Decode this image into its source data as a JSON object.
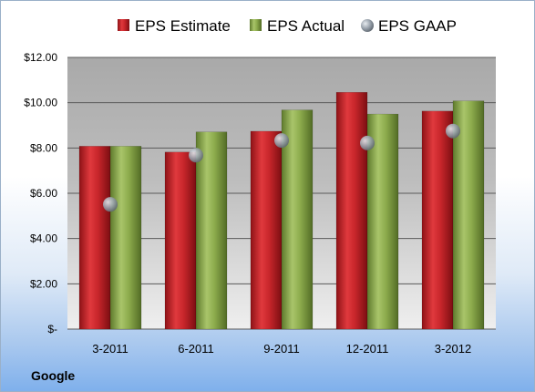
{
  "chart_data": {
    "type": "bar",
    "categories": [
      "3-2011",
      "6-2011",
      "9-2011",
      "12-2011",
      "3-2012"
    ],
    "series": [
      {
        "name": "EPS Estimate",
        "kind": "bar",
        "color": "#c0252a",
        "values": [
          8.08,
          7.82,
          8.74,
          10.46,
          9.63
        ]
      },
      {
        "name": "EPS Actual",
        "kind": "bar",
        "color": "#8cab4c",
        "values": [
          8.08,
          8.71,
          9.68,
          9.5,
          10.08
        ]
      },
      {
        "name": "EPS GAAP",
        "kind": "marker",
        "color": "#9aa3ad",
        "values": [
          5.51,
          7.68,
          8.33,
          8.22,
          8.75
        ]
      }
    ],
    "y_ticks": [
      {
        "value": 0,
        "label": "$-"
      },
      {
        "value": 2,
        "label": "$2.00"
      },
      {
        "value": 4,
        "label": "$4.00"
      },
      {
        "value": 6,
        "label": "$6.00"
      },
      {
        "value": 8,
        "label": "$8.00"
      },
      {
        "value": 10,
        "label": "$10.00"
      },
      {
        "value": 12,
        "label": "$12.00"
      }
    ],
    "ylim": [
      0,
      12
    ],
    "grid": true,
    "legend_position": "top",
    "footer_label": "Google"
  }
}
